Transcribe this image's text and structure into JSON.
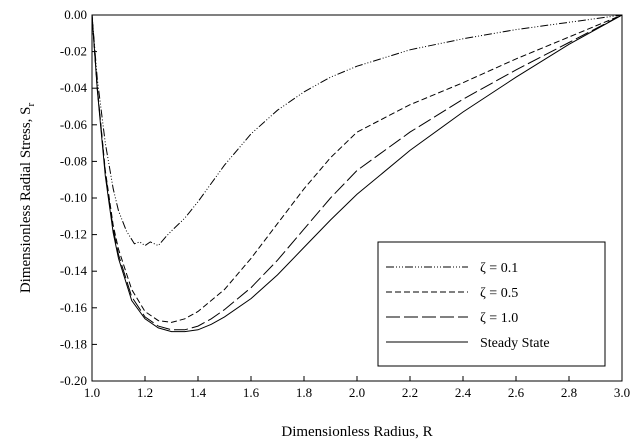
{
  "chart_data": {
    "type": "line",
    "xlabel": "Dimensionless Radius, R",
    "ylabel": "Dimensionless Radial Stress, S",
    "ylabel_sub": "r",
    "xlim": [
      1.0,
      3.0
    ],
    "ylim": [
      -0.2,
      0.0
    ],
    "xticks": [
      "1.0",
      "1.2",
      "1.4",
      "1.6",
      "1.8",
      "2.0",
      "2.2",
      "2.4",
      "2.6",
      "2.8",
      "3.0"
    ],
    "yticks": [
      "0.00",
      "-0.02",
      "-0.04",
      "-0.06",
      "-0.08",
      "-0.10",
      "-0.12",
      "-0.14",
      "-0.16",
      "-0.18",
      "-0.20"
    ],
    "grid": false,
    "legend_position": "lower-right",
    "series": [
      {
        "name": "ζ = 0.1",
        "dash": "8,2,1,2,1,2,1,2",
        "x": [
          1.0,
          1.02,
          1.05,
          1.08,
          1.1,
          1.13,
          1.16,
          1.18,
          1.2,
          1.22,
          1.25,
          1.28,
          1.3,
          1.35,
          1.4,
          1.5,
          1.6,
          1.7,
          1.8,
          1.9,
          2.0,
          2.2,
          2.4,
          2.6,
          2.8,
          3.0
        ],
        "y": [
          0.0,
          -0.035,
          -0.07,
          -0.095,
          -0.107,
          -0.118,
          -0.125,
          -0.124,
          -0.126,
          -0.124,
          -0.126,
          -0.121,
          -0.118,
          -0.111,
          -0.102,
          -0.082,
          -0.065,
          -0.052,
          -0.042,
          -0.034,
          -0.028,
          -0.019,
          -0.013,
          -0.008,
          -0.004,
          0.0
        ]
      },
      {
        "name": "ζ = 0.5",
        "dash": "6,3",
        "x": [
          1.0,
          1.02,
          1.05,
          1.08,
          1.1,
          1.15,
          1.2,
          1.25,
          1.3,
          1.35,
          1.4,
          1.5,
          1.6,
          1.7,
          1.8,
          1.9,
          2.0,
          2.2,
          2.4,
          2.6,
          2.8,
          3.0
        ],
        "y": [
          0.0,
          -0.04,
          -0.085,
          -0.115,
          -0.128,
          -0.15,
          -0.162,
          -0.167,
          -0.168,
          -0.166,
          -0.162,
          -0.15,
          -0.133,
          -0.114,
          -0.095,
          -0.078,
          -0.064,
          -0.049,
          -0.037,
          -0.024,
          -0.012,
          0.0
        ]
      },
      {
        "name": "ζ = 1.0",
        "dash": "14,4",
        "x": [
          1.0,
          1.02,
          1.05,
          1.08,
          1.1,
          1.15,
          1.2,
          1.25,
          1.3,
          1.35,
          1.4,
          1.45,
          1.5,
          1.6,
          1.7,
          1.8,
          1.9,
          2.0,
          2.2,
          2.4,
          2.6,
          2.8,
          3.0
        ],
        "y": [
          0.0,
          -0.04,
          -0.086,
          -0.117,
          -0.131,
          -0.154,
          -0.165,
          -0.17,
          -0.172,
          -0.172,
          -0.17,
          -0.166,
          -0.161,
          -0.149,
          -0.134,
          -0.117,
          -0.1,
          -0.085,
          -0.064,
          -0.046,
          -0.03,
          -0.015,
          0.0
        ]
      },
      {
        "name": "Steady State",
        "dash": "",
        "x": [
          1.0,
          1.02,
          1.05,
          1.08,
          1.1,
          1.15,
          1.2,
          1.25,
          1.3,
          1.35,
          1.4,
          1.45,
          1.5,
          1.6,
          1.7,
          1.8,
          1.9,
          2.0,
          2.2,
          2.4,
          2.6,
          2.8,
          3.0
        ],
        "y": [
          0.0,
          -0.041,
          -0.088,
          -0.119,
          -0.133,
          -0.156,
          -0.166,
          -0.171,
          -0.173,
          -0.173,
          -0.172,
          -0.169,
          -0.165,
          -0.155,
          -0.142,
          -0.127,
          -0.112,
          -0.098,
          -0.074,
          -0.053,
          -0.034,
          -0.016,
          0.0
        ]
      }
    ]
  }
}
